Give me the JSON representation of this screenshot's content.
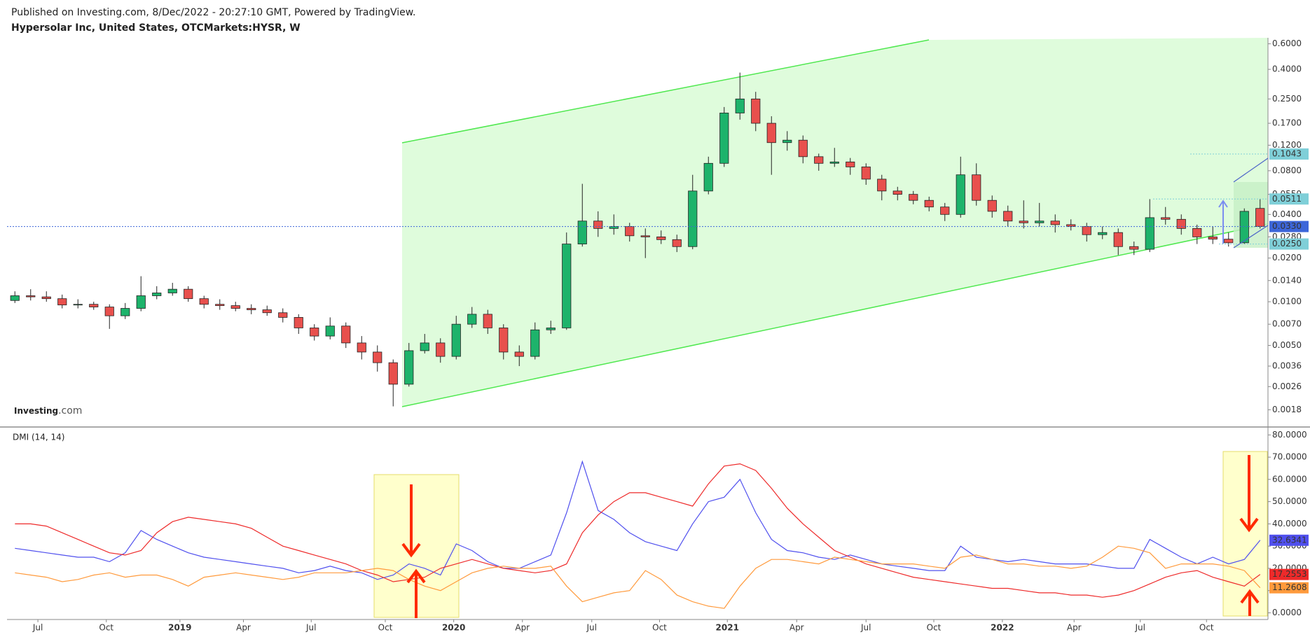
{
  "header": {
    "published": "Published on Investing.com, 8/Dec/2022 - 20:27:10 GMT, Powered by TradingView.",
    "symbol": "Hypersolar Inc, United States, OTCMarkets:HYSR, W",
    "logo_main": "Investing",
    "logo_suffix": ".com"
  },
  "chart_data": [
    {
      "type": "candlestick",
      "log_scale": true,
      "up_color": "#1db36b",
      "down_color": "#e8504d",
      "xlim": [
        0,
        80
      ],
      "ylim": [
        0.0014,
        0.66
      ],
      "yticks": [
        {
          "value": 0.6,
          "label": "0.6000"
        },
        {
          "value": 0.4,
          "label": "0.4000"
        },
        {
          "value": 0.25,
          "label": "0.2500"
        },
        {
          "value": 0.17,
          "label": "0.1700"
        },
        {
          "value": 0.12,
          "label": "0.1200"
        },
        {
          "value": 0.08,
          "label": "0.0800"
        },
        {
          "value": 0.055,
          "label": "0.0550"
        },
        {
          "value": 0.04,
          "label": "0.0400"
        },
        {
          "value": 0.028,
          "label": "0.0280"
        },
        {
          "value": 0.02,
          "label": "0.0200"
        },
        {
          "value": 0.014,
          "label": "0.0140"
        },
        {
          "value": 0.01,
          "label": "0.0100"
        },
        {
          "value": 0.007,
          "label": "0.0070"
        },
        {
          "value": 0.005,
          "label": "0.0050"
        },
        {
          "value": 0.0036,
          "label": "0.0036"
        },
        {
          "value": 0.0026,
          "label": "0.0026"
        },
        {
          "value": 0.0018,
          "label": "0.0018"
        }
      ],
      "price_levels": [
        {
          "value": 0.1043,
          "label": "0.1043",
          "color": "#7fcfd8"
        },
        {
          "value": 0.0511,
          "label": "0.0511",
          "color": "#7fcfd8"
        },
        {
          "value": 0.033,
          "label": "0.0330",
          "color": "#3d66d9"
        },
        {
          "value": 0.025,
          "label": "0.0250",
          "color": "#7fcfd8"
        }
      ],
      "open": [
        0.0102,
        0.011,
        0.0108,
        0.0105,
        0.0095,
        0.0096,
        0.0092,
        0.008,
        0.009,
        0.011,
        0.0115,
        0.0122,
        0.0105,
        0.0096,
        0.0094,
        0.009,
        0.0088,
        0.0084,
        0.0078,
        0.0066,
        0.0058,
        0.0068,
        0.0052,
        0.0045,
        0.0038,
        0.0027,
        0.0046,
        0.0052,
        0.0042,
        0.007,
        0.0082,
        0.0066,
        0.0045,
        0.0042,
        0.0064,
        0.0066,
        0.025,
        0.036,
        0.032,
        0.033,
        0.0285,
        0.028,
        0.0268,
        0.024,
        0.058,
        0.09,
        0.2,
        0.25,
        0.17,
        0.125,
        0.13,
        0.1,
        0.09,
        0.092,
        0.085,
        0.07,
        0.058,
        0.055,
        0.05,
        0.045,
        0.04,
        0.075,
        0.05,
        0.042,
        0.036,
        0.035,
        0.036,
        0.034,
        0.033,
        0.029,
        0.03,
        0.024,
        0.023,
        0.038,
        0.037,
        0.032,
        0.028,
        0.027,
        0.0255,
        0.044
      ],
      "high": [
        0.0118,
        0.0122,
        0.0118,
        0.0112,
        0.0104,
        0.01,
        0.0096,
        0.0098,
        0.015,
        0.0128,
        0.0135,
        0.0128,
        0.011,
        0.0104,
        0.01,
        0.0096,
        0.0094,
        0.009,
        0.0082,
        0.007,
        0.0078,
        0.0072,
        0.0058,
        0.005,
        0.004,
        0.0052,
        0.006,
        0.0056,
        0.008,
        0.0092,
        0.0088,
        0.007,
        0.005,
        0.0072,
        0.0074,
        0.03,
        0.065,
        0.042,
        0.04,
        0.035,
        0.032,
        0.031,
        0.029,
        0.075,
        0.1,
        0.22,
        0.38,
        0.28,
        0.19,
        0.15,
        0.14,
        0.105,
        0.115,
        0.098,
        0.09,
        0.075,
        0.062,
        0.058,
        0.053,
        0.048,
        0.1,
        0.09,
        0.054,
        0.046,
        0.05,
        0.048,
        0.04,
        0.037,
        0.035,
        0.033,
        0.032,
        0.026,
        0.051,
        0.045,
        0.04,
        0.034,
        0.033,
        0.03,
        0.044,
        0.051
      ],
      "low": [
        0.0098,
        0.0102,
        0.01,
        0.009,
        0.009,
        0.0088,
        0.0065,
        0.0076,
        0.0086,
        0.0104,
        0.011,
        0.01,
        0.009,
        0.0088,
        0.0086,
        0.0082,
        0.008,
        0.0072,
        0.006,
        0.0054,
        0.0055,
        0.0048,
        0.004,
        0.0033,
        0.0019,
        0.0026,
        0.0044,
        0.0038,
        0.004,
        0.0066,
        0.006,
        0.004,
        0.0036,
        0.004,
        0.006,
        0.0064,
        0.024,
        0.028,
        0.029,
        0.026,
        0.02,
        0.025,
        0.022,
        0.023,
        0.055,
        0.085,
        0.18,
        0.15,
        0.075,
        0.11,
        0.09,
        0.08,
        0.085,
        0.075,
        0.064,
        0.05,
        0.05,
        0.047,
        0.042,
        0.036,
        0.038,
        0.046,
        0.038,
        0.033,
        0.032,
        0.033,
        0.03,
        0.031,
        0.026,
        0.027,
        0.021,
        0.021,
        0.022,
        0.034,
        0.029,
        0.025,
        0.025,
        0.024,
        0.025,
        0.032
      ],
      "close": [
        0.011,
        0.0108,
        0.0105,
        0.0095,
        0.0096,
        0.0092,
        0.008,
        0.009,
        0.011,
        0.0115,
        0.0122,
        0.0105,
        0.0096,
        0.0094,
        0.009,
        0.0088,
        0.0084,
        0.0078,
        0.0066,
        0.0058,
        0.0068,
        0.0052,
        0.0045,
        0.0038,
        0.0027,
        0.0046,
        0.0052,
        0.0042,
        0.007,
        0.0082,
        0.0066,
        0.0045,
        0.0042,
        0.0064,
        0.0066,
        0.025,
        0.036,
        0.032,
        0.033,
        0.0285,
        0.028,
        0.0268,
        0.024,
        0.058,
        0.09,
        0.2,
        0.25,
        0.17,
        0.125,
        0.13,
        0.1,
        0.09,
        0.092,
        0.085,
        0.07,
        0.058,
        0.055,
        0.05,
        0.045,
        0.04,
        0.075,
        0.05,
        0.042,
        0.036,
        0.035,
        0.036,
        0.034,
        0.033,
        0.029,
        0.03,
        0.024,
        0.023,
        0.038,
        0.037,
        0.032,
        0.028,
        0.027,
        0.0255,
        0.042,
        0.033
      ]
    },
    {
      "type": "line",
      "title": "DMI (14, 14)",
      "xlim": [
        0,
        80
      ],
      "ylim": [
        -3,
        82.3
      ],
      "yticks": [
        {
          "value": 80,
          "label": "80.0000"
        },
        {
          "value": 70,
          "label": "70.0000"
        },
        {
          "value": 60,
          "label": "60.0000"
        },
        {
          "value": 50,
          "label": "50.0000"
        },
        {
          "value": 40,
          "label": "40.0000"
        },
        {
          "value": 30,
          "label": "30.0000"
        },
        {
          "value": 20,
          "label": "20.0000"
        },
        {
          "value": 10,
          "label": "10.0000"
        },
        {
          "value": 0,
          "label": "0.0000"
        }
      ],
      "xticks": [
        {
          "value": 1.96,
          "label": "Jul"
        },
        {
          "value": 6.3,
          "label": "Oct"
        },
        {
          "value": 10.97,
          "label": "2019"
        },
        {
          "value": 15.0,
          "label": "Apr"
        },
        {
          "value": 19.3,
          "label": "Jul"
        },
        {
          "value": 24.0,
          "label": "Oct"
        },
        {
          "value": 28.34,
          "label": "2020"
        },
        {
          "value": 32.7,
          "label": "Apr"
        },
        {
          "value": 37.1,
          "label": "Jul"
        },
        {
          "value": 41.4,
          "label": "Oct"
        },
        {
          "value": 45.7,
          "label": "2021"
        },
        {
          "value": 50.1,
          "label": "Apr"
        },
        {
          "value": 54.5,
          "label": "Jul"
        },
        {
          "value": 58.8,
          "label": "Oct"
        },
        {
          "value": 63.15,
          "label": "2022"
        },
        {
          "value": 67.7,
          "label": "Apr"
        },
        {
          "value": 71.9,
          "label": "Jul"
        },
        {
          "value": 76.1,
          "label": "Oct"
        }
      ],
      "series": [
        {
          "color": "#5050ee",
          "values": [
            29,
            28,
            27,
            26,
            25,
            25,
            23,
            27,
            37,
            33,
            30,
            27,
            25,
            24,
            23,
            22,
            21,
            20,
            18,
            19,
            21,
            19,
            18,
            15,
            17,
            22,
            20,
            17,
            31,
            28,
            23,
            20,
            20,
            23,
            26,
            45,
            68,
            46,
            42,
            36,
            32,
            30,
            28,
            40,
            50,
            52,
            60,
            45,
            33,
            28,
            27,
            25,
            24,
            26,
            24,
            22,
            21,
            20,
            19,
            19,
            30,
            25,
            24,
            23,
            24,
            23,
            22,
            22,
            22,
            21,
            20,
            20,
            33,
            29,
            25,
            22,
            25,
            22,
            24,
            32.6341
          ]
        },
        {
          "color": "#ee2a2a",
          "values": [
            40,
            40,
            39,
            36,
            33,
            30,
            27,
            26,
            28,
            36,
            41,
            43,
            42,
            41,
            40,
            38,
            34,
            30,
            28,
            26,
            24,
            22,
            19,
            17,
            14,
            15,
            16,
            20,
            22,
            24,
            22,
            20,
            19,
            18,
            19,
            22,
            36,
            44,
            50,
            54,
            54,
            52,
            50,
            48,
            58,
            66,
            67,
            64,
            56,
            47,
            40,
            34,
            28,
            25,
            22,
            20,
            18,
            16,
            15,
            14,
            13,
            12,
            11,
            11,
            10,
            9,
            9,
            8,
            8,
            7,
            8,
            10,
            13,
            16,
            18,
            19,
            16,
            14,
            12,
            17.2553
          ]
        },
        {
          "color": "#ff9a3c",
          "values": [
            18,
            17,
            16,
            14,
            15,
            17,
            18,
            16,
            17,
            17,
            15,
            12,
            16,
            17,
            18,
            17,
            16,
            15,
            16,
            18,
            18,
            18,
            19,
            20,
            19,
            15,
            12,
            10,
            14,
            18,
            20,
            21,
            20,
            20,
            21,
            12,
            5,
            7,
            9,
            10,
            19,
            15,
            8,
            5,
            3,
            2,
            12,
            20,
            24,
            24,
            23,
            22,
            25,
            24,
            23,
            22,
            22,
            22,
            21,
            20,
            25,
            26,
            24,
            22,
            22,
            21,
            21,
            20,
            21,
            25,
            30,
            29,
            27,
            20,
            22,
            22,
            22,
            21,
            19,
            11.2608
          ]
        }
      ]
    }
  ]
}
